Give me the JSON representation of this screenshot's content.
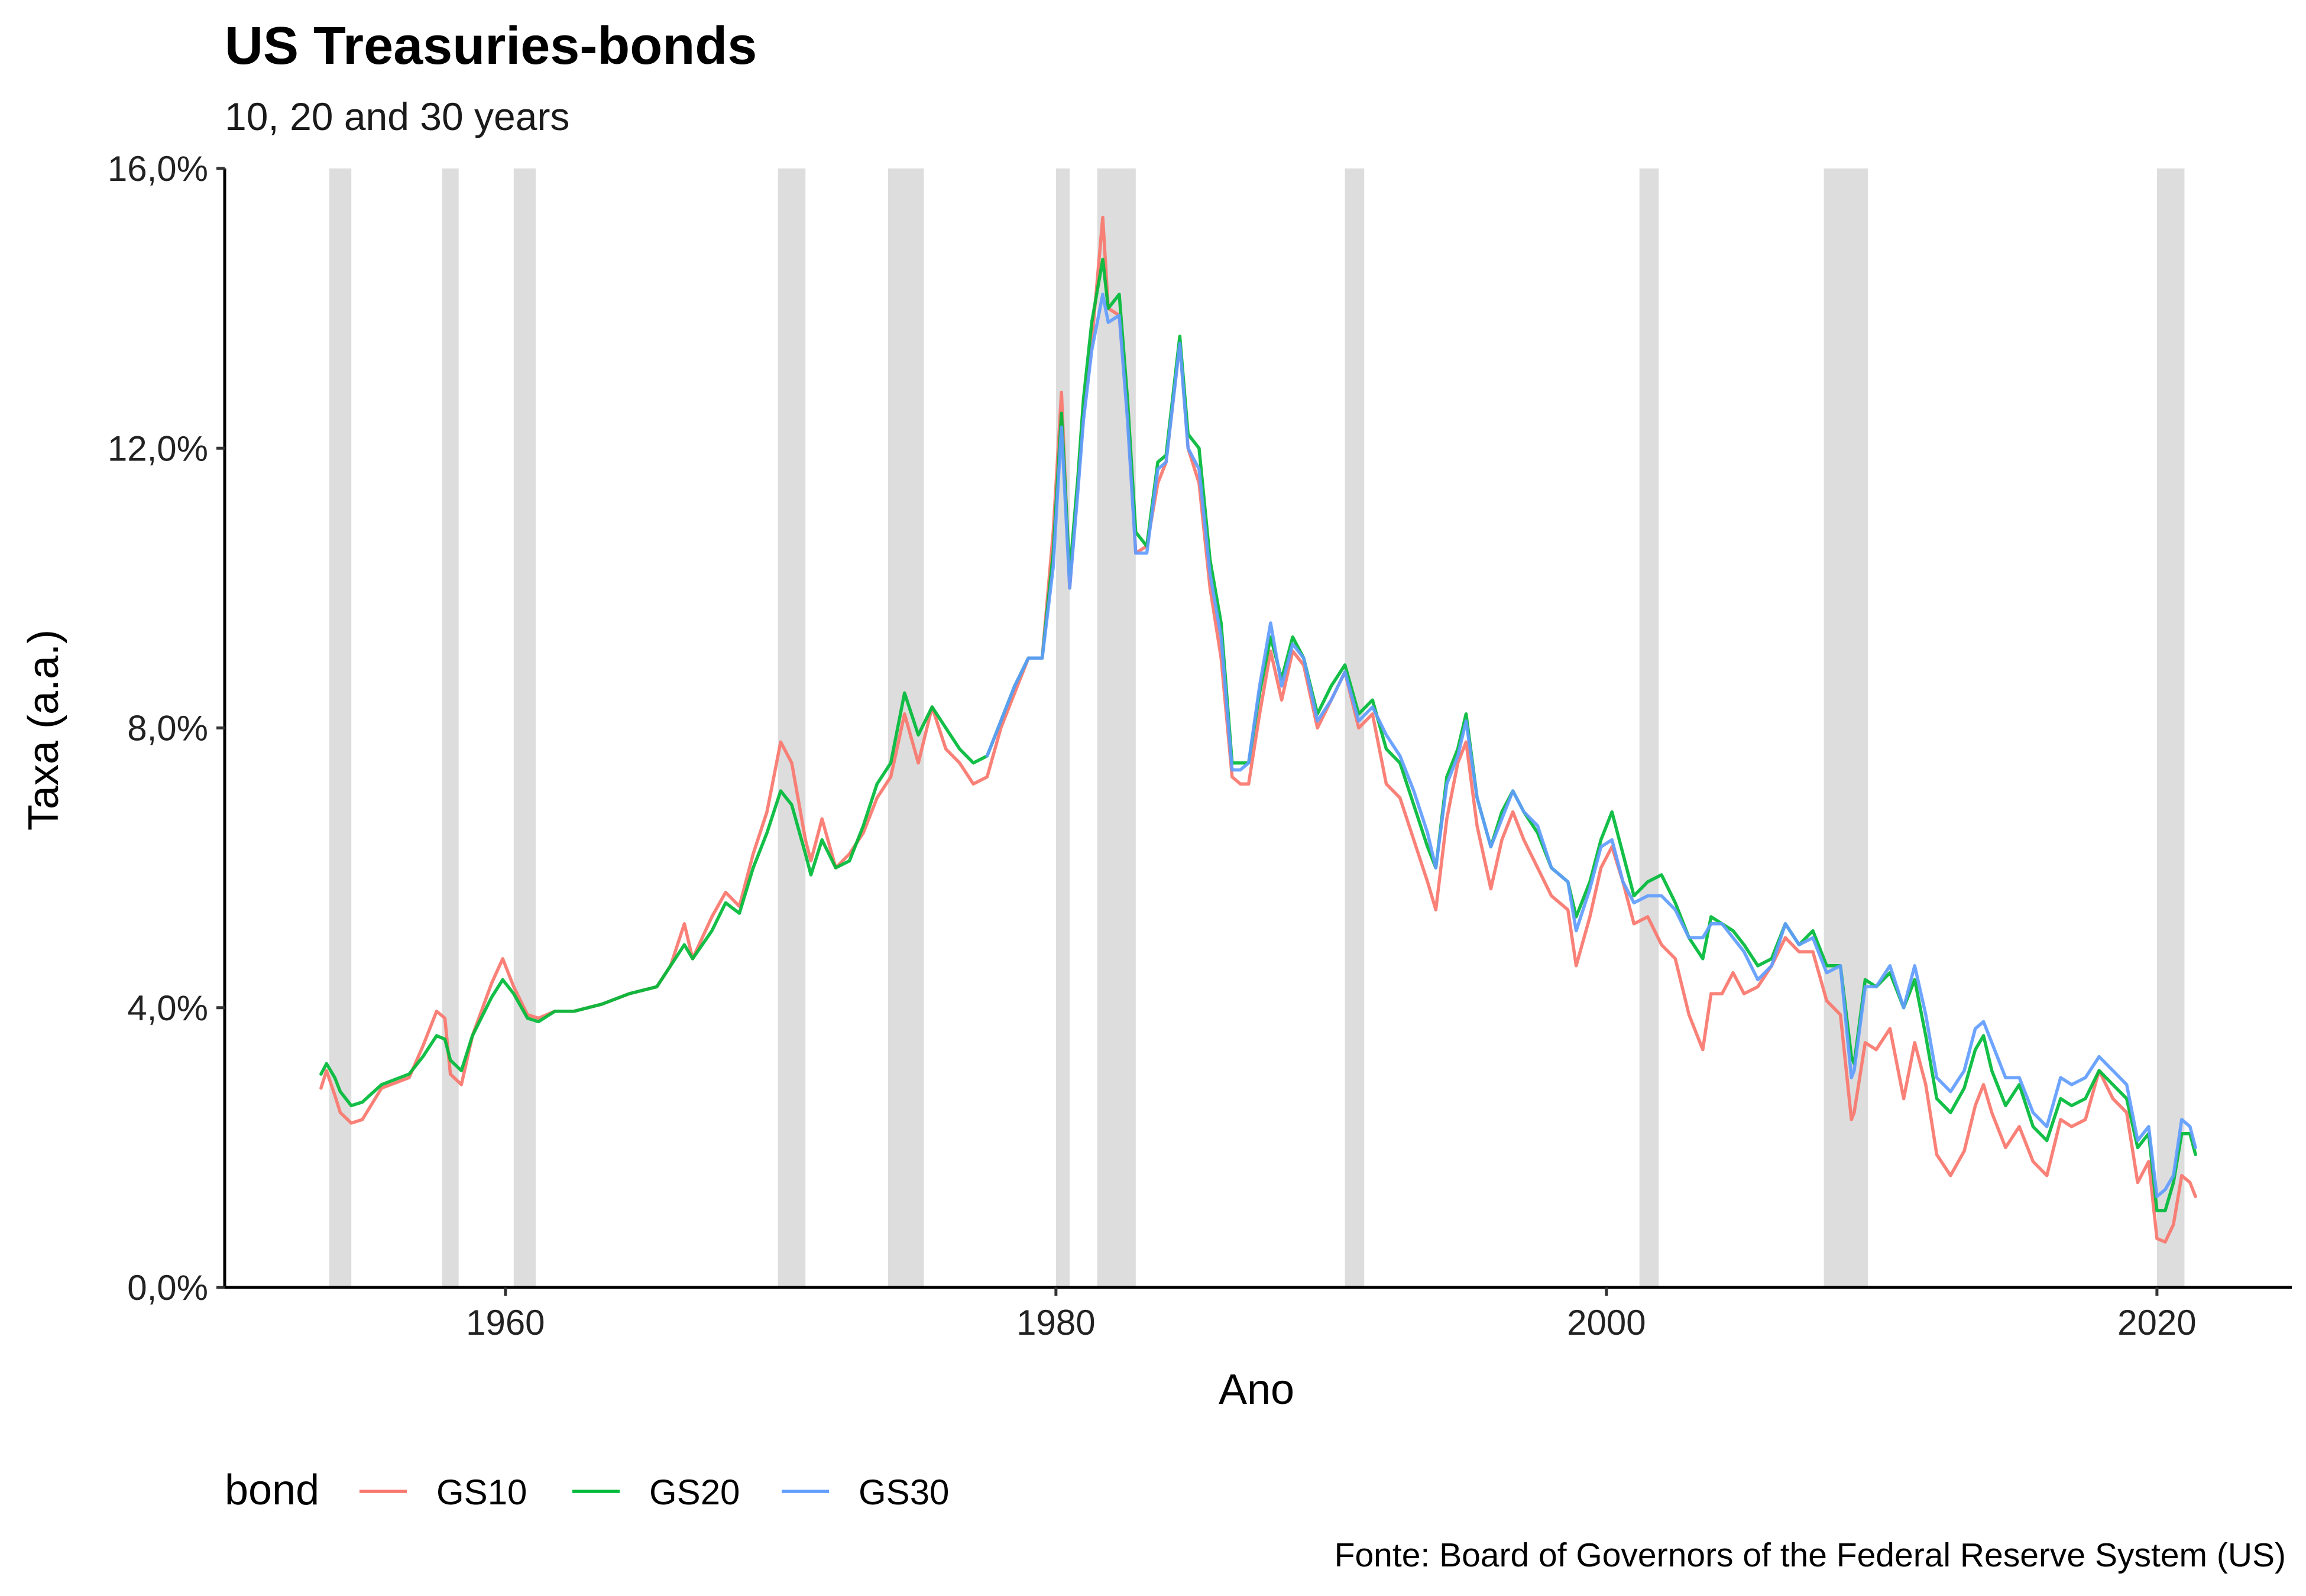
{
  "chart_data": {
    "type": "line",
    "title": "US Treasuries-bonds",
    "subtitle": "10, 20 and 30 years",
    "xlabel": "Ano",
    "ylabel": "Taxa (a.a.)",
    "caption": "Fonte: Board of Governors of the Federal Reserve System (US)",
    "xlim": [
      1949.8,
      2024.9
    ],
    "ylim": [
      0,
      16
    ],
    "x_ticks": [
      1960,
      1980,
      2000,
      2020
    ],
    "x_tick_labels": [
      "1960",
      "1980",
      "2000",
      "2020"
    ],
    "y_ticks": [
      0,
      4,
      8,
      12,
      16
    ],
    "y_tick_labels": [
      "0,0%",
      "4,0%",
      "8,0%",
      "12,0%",
      "16,0%"
    ],
    "grid": false,
    "legend": {
      "title": "bond",
      "position": "bottom-left"
    },
    "colors": {
      "GS10": "#F8766D",
      "GS20": "#00BA38",
      "GS30": "#619CFF",
      "recession": "#dddddd"
    },
    "recessions": [
      [
        1953.6,
        1954.4
      ],
      [
        1957.7,
        1958.3
      ],
      [
        1960.3,
        1961.1
      ],
      [
        1969.9,
        1970.9
      ],
      [
        1973.9,
        1975.2
      ],
      [
        1980.0,
        1980.5
      ],
      [
        1981.5,
        1982.9
      ],
      [
        1990.5,
        1991.2
      ],
      [
        2001.2,
        2001.9
      ],
      [
        2007.9,
        2009.5
      ],
      [
        2020.0,
        2021.0
      ]
    ],
    "series": [
      {
        "name": "GS10",
        "x": [
          1953.3,
          1953.5,
          1953.8,
          1954.0,
          1954.4,
          1954.8,
          1955.5,
          1956.5,
          1957.0,
          1957.5,
          1957.8,
          1958.0,
          1958.4,
          1958.8,
          1959.5,
          1959.9,
          1960.3,
          1960.8,
          1961.2,
          1961.8,
          1962.5,
          1963.5,
          1964.5,
          1965.5,
          1966.0,
          1966.5,
          1966.8,
          1967.5,
          1968.0,
          1968.5,
          1969.0,
          1969.5,
          1970.0,
          1970.4,
          1970.9,
          1971.1,
          1971.5,
          1972.0,
          1972.5,
          1973.0,
          1973.5,
          1974.0,
          1974.5,
          1975.0,
          1975.5,
          1976.0,
          1976.5,
          1977.0,
          1977.5,
          1978.0,
          1978.5,
          1979.0,
          1979.5,
          1979.9,
          1980.2,
          1980.5,
          1980.8,
          1981.0,
          1981.3,
          1981.7,
          1981.9,
          1982.3,
          1982.6,
          1982.9,
          1983.3,
          1983.7,
          1984.0,
          1984.5,
          1984.8,
          1985.2,
          1985.6,
          1986.0,
          1986.4,
          1986.7,
          1987.0,
          1987.4,
          1987.8,
          1988.2,
          1988.6,
          1989.0,
          1989.5,
          1990.0,
          1990.5,
          1991.0,
          1991.5,
          1992.0,
          1992.5,
          1993.0,
          1993.5,
          1993.8,
          1994.2,
          1994.6,
          1994.9,
          1995.3,
          1995.8,
          1996.2,
          1996.6,
          1997.0,
          1997.5,
          1998.0,
          1998.6,
          1998.9,
          1999.4,
          1999.8,
          2000.2,
          2000.6,
          2001.0,
          2001.5,
          2002.0,
          2002.5,
          2003.0,
          2003.5,
          2003.8,
          2004.2,
          2004.6,
          2005.0,
          2005.5,
          2006.0,
          2006.5,
          2007.0,
          2007.5,
          2008.0,
          2008.5,
          2008.9,
          2009.0,
          2009.4,
          2009.8,
          2010.3,
          2010.8,
          2011.2,
          2011.6,
          2012.0,
          2012.5,
          2013.0,
          2013.4,
          2013.7,
          2014.0,
          2014.5,
          2015.0,
          2015.5,
          2016.0,
          2016.5,
          2016.9,
          2017.4,
          2017.9,
          2018.4,
          2018.9,
          2019.3,
          2019.7,
          2020.0,
          2020.3,
          2020.6,
          2020.9,
          2021.2,
          2021.4
        ],
        "y": [
          2.85,
          3.1,
          2.75,
          2.5,
          2.35,
          2.4,
          2.85,
          3.0,
          3.45,
          3.95,
          3.85,
          3.05,
          2.9,
          3.6,
          4.35,
          4.7,
          4.3,
          3.9,
          3.85,
          3.95,
          3.95,
          4.05,
          4.2,
          4.3,
          4.6,
          5.2,
          4.7,
          5.3,
          5.65,
          5.45,
          6.2,
          6.8,
          7.8,
          7.5,
          6.4,
          6.1,
          6.7,
          6.0,
          6.2,
          6.5,
          7.0,
          7.3,
          8.2,
          7.5,
          8.3,
          7.7,
          7.5,
          7.2,
          7.3,
          8.0,
          8.5,
          9.0,
          9.0,
          10.8,
          12.8,
          10.0,
          11.5,
          12.5,
          13.5,
          15.3,
          14.0,
          13.9,
          12.5,
          10.5,
          10.6,
          11.5,
          11.8,
          13.5,
          12.0,
          11.5,
          10.0,
          9.0,
          7.3,
          7.2,
          7.2,
          8.2,
          9.1,
          8.4,
          9.1,
          8.9,
          8.0,
          8.4,
          8.8,
          8.0,
          8.2,
          7.2,
          7.0,
          6.4,
          5.8,
          5.4,
          6.7,
          7.5,
          7.8,
          6.6,
          5.7,
          6.4,
          6.8,
          6.4,
          6.0,
          5.6,
          5.4,
          4.6,
          5.3,
          6.0,
          6.3,
          5.8,
          5.2,
          5.3,
          4.9,
          4.7,
          3.9,
          3.4,
          4.2,
          4.2,
          4.5,
          4.2,
          4.3,
          4.6,
          5.0,
          4.8,
          4.8,
          4.1,
          3.9,
          2.4,
          2.5,
          3.5,
          3.4,
          3.7,
          2.7,
          3.5,
          2.9,
          1.9,
          1.6,
          1.95,
          2.6,
          2.9,
          2.5,
          2.0,
          2.3,
          1.8,
          1.6,
          2.4,
          2.3,
          2.4,
          3.1,
          2.7,
          2.5,
          1.5,
          1.8,
          0.7,
          0.65,
          0.9,
          1.6,
          1.5,
          1.3
        ]
      },
      {
        "name": "GS20",
        "x": [
          1953.3,
          1953.5,
          1953.8,
          1954.0,
          1954.4,
          1954.8,
          1955.5,
          1956.5,
          1957.0,
          1957.5,
          1957.8,
          1958.0,
          1958.4,
          1958.8,
          1959.5,
          1959.9,
          1960.3,
          1960.8,
          1961.2,
          1961.8,
          1962.5,
          1963.5,
          1964.5,
          1965.5,
          1966.0,
          1966.5,
          1966.8,
          1967.5,
          1968.0,
          1968.5,
          1969.0,
          1969.5,
          1970.0,
          1970.4,
          1970.9,
          1971.1,
          1971.5,
          1972.0,
          1972.5,
          1973.0,
          1973.5,
          1974.0,
          1974.5,
          1975.0,
          1975.5,
          1976.0,
          1976.5,
          1977.0,
          1977.5,
          1978.0,
          1978.5,
          1979.0,
          1979.5,
          1979.9,
          1980.2,
          1980.5,
          1980.8,
          1981.0,
          1981.3,
          1981.7,
          1981.9,
          1982.3,
          1982.6,
          1982.9,
          1983.3,
          1983.7,
          1984.0,
          1984.5,
          1984.8,
          1985.2,
          1985.6,
          1986.0,
          1986.4,
          1986.7,
          1987.0,
          1987.4,
          1987.8,
          1988.2,
          1988.6,
          1989.0,
          1989.5,
          1990.0,
          1990.5,
          1991.0,
          1991.5,
          1992.0,
          1992.5,
          1993.0,
          1993.5,
          1993.8,
          1994.2,
          1994.6,
          1994.9,
          1995.3,
          1995.8,
          1996.2,
          1996.6,
          1997.0,
          1997.5,
          1998.0,
          1998.6,
          1998.9,
          1999.4,
          1999.8,
          2000.2,
          2000.6,
          2001.0,
          2001.5,
          2002.0,
          2002.5,
          2003.0,
          2003.5,
          2003.8,
          2004.2,
          2004.6,
          2005.0,
          2005.5,
          2006.0,
          2006.5,
          2007.0,
          2007.5,
          2008.0,
          2008.5,
          2008.9,
          2009.0,
          2009.4,
          2009.8,
          2010.3,
          2010.8,
          2011.2,
          2011.6,
          2012.0,
          2012.5,
          2013.0,
          2013.4,
          2013.7,
          2014.0,
          2014.5,
          2015.0,
          2015.5,
          2016.0,
          2016.5,
          2016.9,
          2017.4,
          2017.9,
          2018.4,
          2018.9,
          2019.3,
          2019.7,
          2020.0,
          2020.3,
          2020.6,
          2020.9,
          2021.2,
          2021.4
        ],
        "y": [
          3.05,
          3.2,
          3.0,
          2.8,
          2.6,
          2.65,
          2.9,
          3.05,
          3.3,
          3.6,
          3.55,
          3.25,
          3.1,
          3.6,
          4.15,
          4.4,
          4.2,
          3.85,
          3.8,
          3.95,
          3.95,
          4.05,
          4.2,
          4.3,
          4.6,
          4.9,
          4.7,
          5.1,
          5.5,
          5.35,
          6.0,
          6.5,
          7.1,
          6.9,
          6.2,
          5.9,
          6.4,
          6.0,
          6.1,
          6.6,
          7.2,
          7.5,
          8.5,
          7.9,
          8.3,
          8.0,
          7.7,
          7.5,
          7.6,
          8.1,
          8.6,
          9.0,
          9.0,
          10.5,
          12.5,
          10.2,
          11.6,
          12.7,
          13.8,
          14.7,
          14.0,
          14.2,
          12.7,
          10.8,
          10.6,
          11.8,
          11.9,
          13.6,
          12.2,
          12.0,
          10.4,
          9.5,
          7.5,
          7.5,
          7.5,
          8.5,
          9.3,
          8.7,
          9.3,
          9.0,
          8.2,
          8.6,
          8.9,
          8.2,
          8.4,
          7.7,
          7.5,
          6.9,
          6.3,
          6.0,
          7.3,
          7.7,
          8.2,
          7.0,
          6.3,
          6.8,
          7.1,
          6.8,
          6.5,
          6.0,
          5.8,
          5.3,
          5.8,
          6.4,
          6.8,
          6.2,
          5.6,
          5.8,
          5.9,
          5.5,
          5.0,
          4.7,
          5.3,
          5.2,
          5.1,
          4.9,
          4.6,
          4.7,
          5.2,
          4.9,
          5.1,
          4.6,
          4.6,
          3.3,
          3.2,
          4.4,
          4.3,
          4.5,
          4.0,
          4.4,
          3.6,
          2.7,
          2.5,
          2.85,
          3.4,
          3.6,
          3.1,
          2.6,
          2.9,
          2.3,
          2.1,
          2.7,
          2.6,
          2.7,
          3.1,
          2.9,
          2.7,
          2.0,
          2.2,
          1.1,
          1.1,
          1.5,
          2.2,
          2.2,
          1.9
        ]
      },
      {
        "name": "GS30",
        "x": [
          1977.5,
          1978.0,
          1978.5,
          1979.0,
          1979.5,
          1979.9,
          1980.2,
          1980.5,
          1980.8,
          1981.0,
          1981.3,
          1981.7,
          1981.9,
          1982.3,
          1982.6,
          1982.9,
          1983.3,
          1983.7,
          1984.0,
          1984.5,
          1984.8,
          1985.2,
          1985.6,
          1986.0,
          1986.4,
          1986.7,
          1987.0,
          1987.4,
          1987.8,
          1988.2,
          1988.6,
          1989.0,
          1989.5,
          1990.0,
          1990.5,
          1991.0,
          1991.5,
          1992.0,
          1992.5,
          1993.0,
          1993.5,
          1993.8,
          1994.2,
          1994.6,
          1994.9,
          1995.3,
          1995.8,
          1996.2,
          1996.6,
          1997.0,
          1997.5,
          1998.0,
          1998.6,
          1998.9,
          1999.4,
          1999.8,
          2000.2,
          2000.6,
          2001.0,
          2001.5,
          2002.0,
          2002.5,
          2003.0,
          2003.5,
          2003.8,
          2004.2,
          2004.6,
          2005.0,
          2005.5,
          2006.0,
          2006.5,
          2007.0,
          2007.5,
          2008.0,
          2008.5,
          2008.9,
          2009.0,
          2009.4,
          2009.8,
          2010.3,
          2010.8,
          2011.2,
          2011.6,
          2012.0,
          2012.5,
          2013.0,
          2013.4,
          2013.7,
          2014.0,
          2014.5,
          2015.0,
          2015.5,
          2016.0,
          2016.5,
          2016.9,
          2017.4,
          2017.9,
          2018.4,
          2018.9,
          2019.3,
          2019.7,
          2020.0,
          2020.3,
          2020.6,
          2020.9,
          2021.2,
          2021.4
        ],
        "y": [
          7.6,
          8.1,
          8.6,
          9.0,
          9.0,
          10.3,
          12.3,
          10.0,
          11.4,
          12.4,
          13.4,
          14.2,
          13.8,
          13.9,
          12.4,
          10.5,
          10.5,
          11.7,
          11.8,
          13.5,
          12.0,
          11.7,
          10.2,
          9.3,
          7.4,
          7.4,
          7.5,
          8.6,
          9.5,
          8.6,
          9.2,
          9.0,
          8.1,
          8.4,
          8.8,
          8.1,
          8.3,
          7.9,
          7.6,
          7.1,
          6.5,
          6.0,
          7.2,
          7.6,
          8.1,
          7.0,
          6.3,
          6.7,
          7.1,
          6.8,
          6.6,
          6.0,
          5.8,
          5.1,
          5.7,
          6.3,
          6.4,
          5.8,
          5.5,
          5.6,
          5.6,
          5.4,
          5.0,
          5.0,
          5.2,
          5.2,
          5.0,
          4.8,
          4.4,
          4.6,
          5.2,
          4.9,
          5.0,
          4.5,
          4.6,
          3.0,
          3.1,
          4.3,
          4.3,
          4.6,
          4.0,
          4.6,
          3.9,
          3.0,
          2.8,
          3.1,
          3.7,
          3.8,
          3.5,
          3.0,
          3.0,
          2.5,
          2.3,
          3.0,
          2.9,
          3.0,
          3.3,
          3.1,
          2.9,
          2.1,
          2.3,
          1.3,
          1.4,
          1.6,
          2.4,
          2.3,
          2.0
        ]
      }
    ]
  }
}
